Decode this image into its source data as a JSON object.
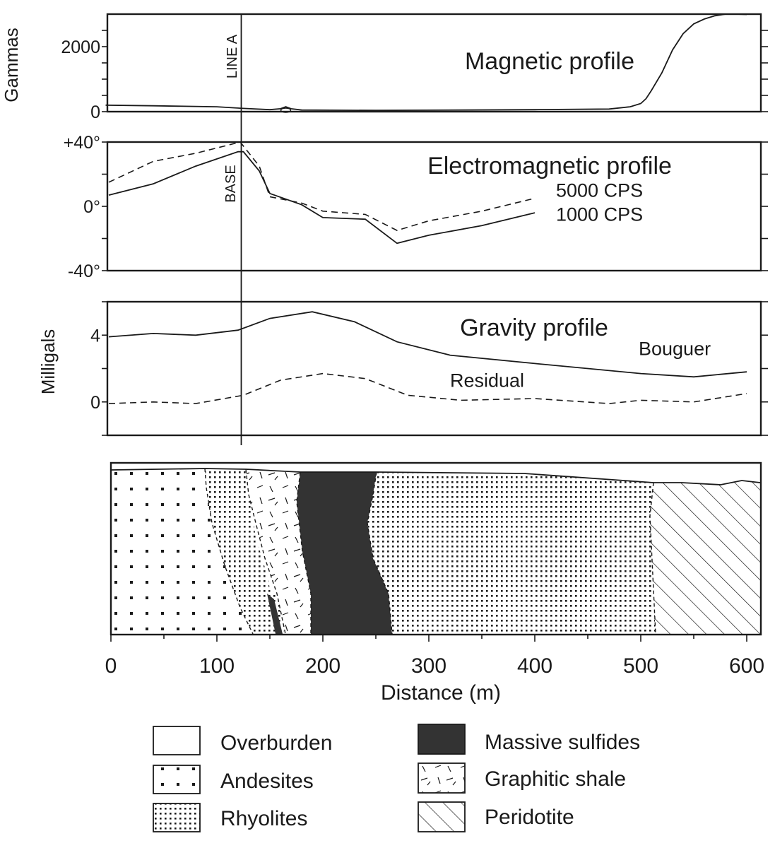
{
  "chart_data": [
    {
      "type": "line",
      "title": "Magnetic profile",
      "ylabel": "Gammas",
      "xlim": [
        0,
        610
      ],
      "ylim": [
        0,
        3000
      ],
      "yticks": [
        {
          "v": 0,
          "label": "0"
        },
        {
          "v": 2000,
          "label": "2000"
        }
      ],
      "series": [
        {
          "name": "",
          "style": "solid",
          "x": [
            -5,
            40,
            100,
            125,
            150,
            160,
            165,
            170,
            180,
            250,
            400,
            470,
            490,
            500,
            505,
            510,
            520,
            530,
            540,
            550,
            560,
            570,
            580,
            590,
            600
          ],
          "y": [
            200,
            180,
            150,
            100,
            60,
            90,
            150,
            90,
            50,
            40,
            60,
            80,
            150,
            250,
            400,
            650,
            1200,
            1900,
            2400,
            2700,
            2850,
            2950,
            3000,
            3000,
            2990
          ]
        }
      ]
    },
    {
      "type": "line",
      "title": "Electromagnetic profile",
      "ylim": [
        -40,
        40
      ],
      "yticks": [
        {
          "v": 40,
          "label": "+40°"
        },
        {
          "v": 0,
          "label": "0°"
        },
        {
          "v": -40,
          "label": "-40°"
        }
      ],
      "series": [
        {
          "name": "5000 CPS",
          "style": "dash",
          "label_pos": [
            420,
            6
          ],
          "x": [
            -2,
            40,
            80,
            110,
            122,
            140,
            150,
            180,
            200,
            240,
            270,
            300,
            350,
            400
          ],
          "y": [
            15,
            28,
            33,
            38,
            40,
            25,
            6,
            2,
            -3,
            -5,
            -15,
            -9,
            -3,
            5
          ]
        },
        {
          "name": "1000 CPS",
          "style": "solid",
          "label_pos": [
            420,
            -9
          ],
          "x": [
            -2,
            40,
            80,
            120,
            125,
            140,
            150,
            180,
            200,
            240,
            270,
            300,
            350,
            400
          ],
          "y": [
            7,
            14,
            25,
            34,
            34,
            22,
            8,
            1,
            -7,
            -8,
            -23,
            -18,
            -12,
            -4
          ]
        }
      ]
    },
    {
      "type": "line",
      "title": "Gravity profile",
      "ylabel": "Milligals",
      "ylim": [
        -2,
        6
      ],
      "yticks": [
        {
          "v": 4,
          "label": "4"
        },
        {
          "v": 0,
          "label": "0"
        }
      ],
      "series": [
        {
          "name": "Bouguer",
          "style": "solid",
          "label_pos": [
            498,
            2.8
          ],
          "x": [
            -2,
            40,
            80,
            120,
            150,
            190,
            230,
            270,
            320,
            400,
            500,
            550,
            600
          ],
          "y": [
            3.9,
            4.1,
            4.0,
            4.3,
            5.0,
            5.4,
            4.8,
            3.6,
            2.8,
            2.3,
            1.7,
            1.5,
            1.8
          ]
        },
        {
          "name": "Residual",
          "style": "dash",
          "label_pos": [
            320,
            0.9
          ],
          "x": [
            -2,
            40,
            80,
            125,
            160,
            200,
            240,
            280,
            330,
            400,
            470,
            500,
            550,
            600
          ],
          "y": [
            -0.1,
            0.0,
            -0.1,
            0.4,
            1.3,
            1.7,
            1.4,
            0.4,
            0.1,
            0.2,
            -0.1,
            0.1,
            0.0,
            0.5
          ]
        }
      ]
    }
  ],
  "marker": {
    "x": 123,
    "label_top": "LINE A",
    "label_mid": "BASE"
  },
  "section": {
    "xlabel": "Distance (m)",
    "xticks": [
      0,
      100,
      200,
      300,
      400,
      500,
      600
    ],
    "units": [
      {
        "name": "Andesites",
        "pattern": "pat-andesite"
      },
      {
        "name": "Rhyolites",
        "pattern": "pat-rhyolite"
      },
      {
        "name": "Graphitic shale",
        "pattern": "pat-shale"
      },
      {
        "name": "Massive sulfides",
        "pattern": "pat-sulfide"
      },
      {
        "name": "Peridotite",
        "pattern": "pat-peridotite"
      }
    ]
  },
  "legend": [
    {
      "label": "Overburden",
      "pattern": "pat-overburden"
    },
    {
      "label": "Andesites",
      "pattern": "pat-andesite"
    },
    {
      "label": "Rhyolites",
      "pattern": "pat-rhyolite"
    },
    {
      "label": "Massive sulfides",
      "pattern": "pat-sulfide"
    },
    {
      "label": "Graphitic shale",
      "pattern": "pat-shale"
    },
    {
      "label": "Peridotite",
      "pattern": "pat-peridotite"
    }
  ]
}
